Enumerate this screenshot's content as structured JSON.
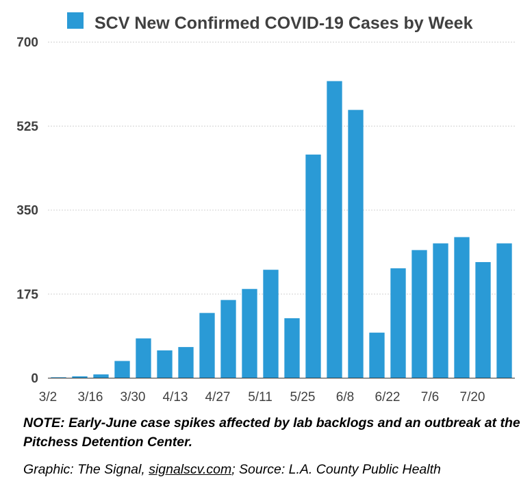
{
  "chart_data": {
    "type": "bar",
    "title": "SCV New Confirmed COVID-19 Cases by Week",
    "legend": {
      "label": "SCV New Confirmed COVID-19 Cases by Week",
      "placement": "top-center"
    },
    "categories": [
      "3/2",
      "3/9",
      "3/16",
      "3/23",
      "3/30",
      "4/6",
      "4/13",
      "4/20",
      "4/27",
      "5/4",
      "5/11",
      "5/18",
      "5/25",
      "6/1",
      "6/8",
      "6/15",
      "6/22",
      "6/29",
      "7/6",
      "7/13",
      "7/20",
      "7/27"
    ],
    "x_tick_labels": [
      "3/2",
      "",
      "3/16",
      "",
      "3/30",
      "",
      "4/13",
      "",
      "4/27",
      "",
      "5/11",
      "",
      "5/25",
      "",
      "6/8",
      "",
      "6/22",
      "",
      "7/6",
      "",
      "7/20",
      ""
    ],
    "series": [
      {
        "values": [
          1,
          3,
          7,
          35,
          82,
          57,
          64,
          135,
          162,
          185,
          225,
          124,
          465,
          618,
          558,
          94,
          228,
          266,
          280,
          293,
          241,
          280
        ],
        "color": "#2a9ad6"
      }
    ],
    "ylim": [
      0,
      700
    ],
    "y_ticks": [
      0,
      175,
      350,
      525,
      700
    ],
    "grid": true,
    "xlabel": "",
    "ylabel": ""
  },
  "footer": {
    "note": "NOTE: Early-June case spikes affected by lab backlogs and an outbreak at the Pitchess Detention Center.",
    "credit_prefix": "Graphic: The Signal, ",
    "credit_link": "signalscv.com",
    "credit_suffix": "; Source: L.A. County Public Health"
  }
}
